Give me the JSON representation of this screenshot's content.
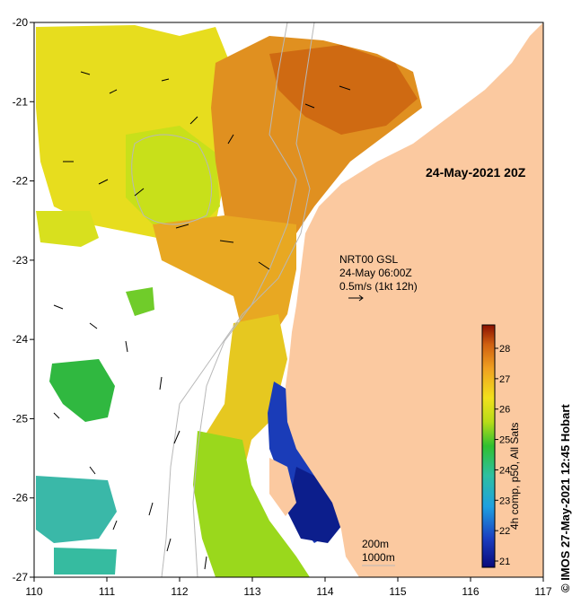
{
  "map": {
    "lon_ticks": [
      "110",
      "111",
      "112",
      "113",
      "114",
      "115",
      "116",
      "117"
    ],
    "lat_ticks": [
      "-20",
      "-21",
      "-22",
      "-23",
      "-24",
      "-25",
      "-26",
      "-27"
    ],
    "date_label": "24-May-2021 20Z",
    "current_label_lines": [
      "NRT00 GSL",
      "24-May 06:00Z",
      "0.5m/s (1kt 12h)"
    ],
    "isobath_labels": [
      "200m",
      "1000m"
    ],
    "colors": {
      "land": "#fbc9a0",
      "warm": "#e08a1c",
      "mid": "#e6d21e",
      "cool": "#3ab6a8",
      "cold": "#0c1e8c",
      "contour": "#b8b8b8"
    }
  },
  "colorbar": {
    "title": "4h comp, p50, All Sats",
    "ticks": [
      "21",
      "22",
      "23",
      "24",
      "25",
      "26",
      "27",
      "28"
    ]
  },
  "credit": "© IMOS 27-May-2021 12:45 Hobart"
}
